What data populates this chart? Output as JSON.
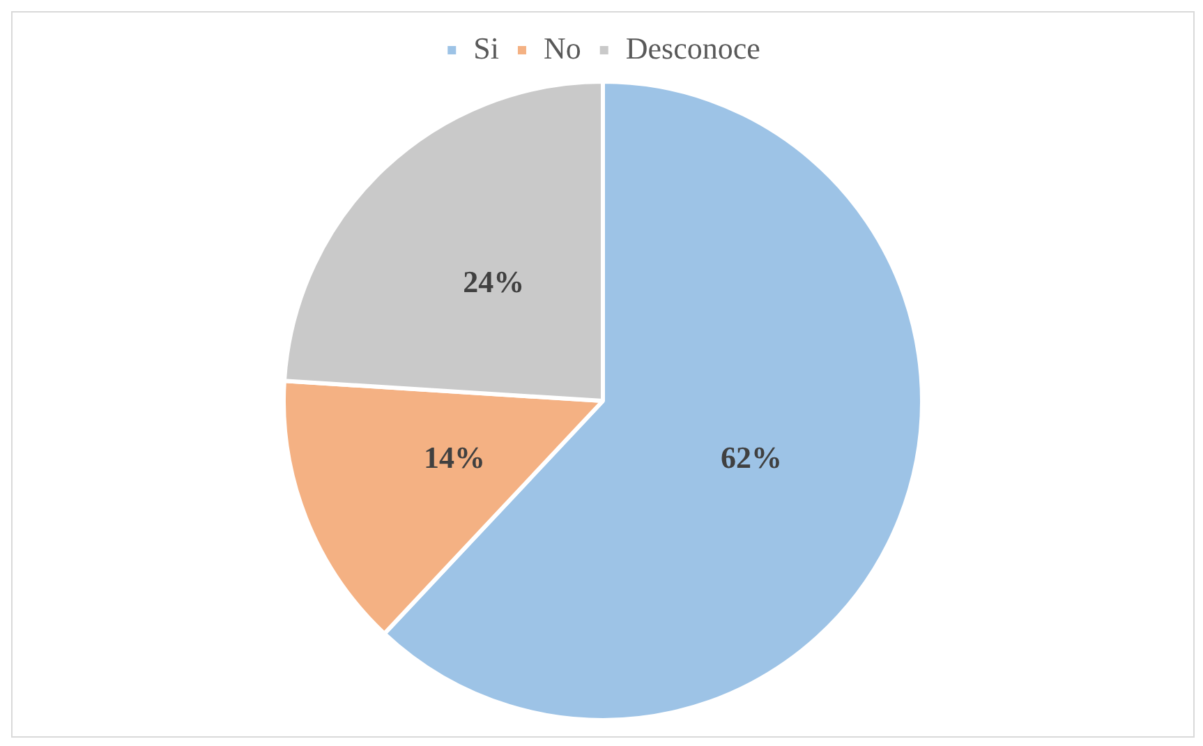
{
  "chart_data": {
    "type": "pie",
    "categories": [
      "Si",
      "No",
      "Desconoce"
    ],
    "values": [
      62,
      14,
      24
    ],
    "colors": [
      "#9dc3e6",
      "#f4b183",
      "#c9c9c9"
    ],
    "value_labels": [
      "62%",
      "14%",
      "24%"
    ],
    "legend": "top"
  }
}
